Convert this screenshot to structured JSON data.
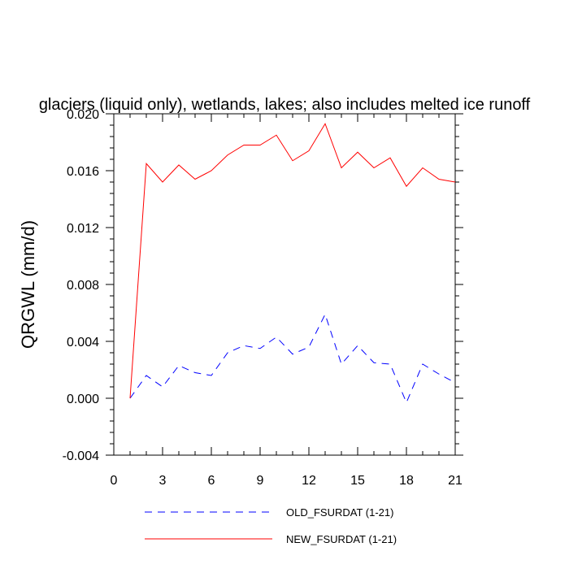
{
  "chart_data": {
    "type": "line",
    "title": "glaciers (liquid only), wetlands, lakes; also includes melted ice runoff",
    "xlabel": "",
    "ylabel": "QRGWL  (mm/d)",
    "xlim": [
      0,
      21
    ],
    "ylim": [
      -0.004,
      0.02
    ],
    "x_ticks": [
      0,
      3,
      6,
      9,
      12,
      15,
      18,
      21
    ],
    "x_tick_labels": [
      "0",
      "3",
      "6",
      "9",
      "12",
      "15",
      "18",
      "21"
    ],
    "y_ticks": [
      -0.004,
      0.0,
      0.004,
      0.008,
      0.012,
      0.016,
      0.02
    ],
    "y_tick_labels": [
      "-0.004",
      "0.000",
      "0.004",
      "0.008",
      "0.012",
      "0.016",
      "0.020"
    ],
    "grid": false,
    "legend_position": "bottom",
    "x": [
      1,
      2,
      3,
      4,
      5,
      6,
      7,
      8,
      9,
      10,
      11,
      12,
      13,
      14,
      15,
      16,
      17,
      18,
      19,
      20,
      21
    ],
    "series": [
      {
        "name": "OLD_FSURDAT (1-21)",
        "color": "#0000ff",
        "dash": "dashed",
        "values": [
          0.0,
          0.0016,
          0.0008,
          0.0023,
          0.0018,
          0.0016,
          0.0032,
          0.0037,
          0.0035,
          0.0043,
          0.0031,
          0.0036,
          0.0059,
          0.0024,
          0.0037,
          0.0025,
          0.0024,
          -0.0003,
          0.0024,
          0.0017,
          0.0011
        ]
      },
      {
        "name": "NEW_FSURDAT (1-21)",
        "color": "#ff0000",
        "dash": "solid",
        "values": [
          0.0,
          0.0165,
          0.0152,
          0.0164,
          0.0154,
          0.016,
          0.0171,
          0.0178,
          0.0178,
          0.0185,
          0.0167,
          0.0174,
          0.0193,
          0.0162,
          0.0173,
          0.0162,
          0.0169,
          0.0149,
          0.0162,
          0.0154,
          0.0152
        ]
      }
    ]
  }
}
